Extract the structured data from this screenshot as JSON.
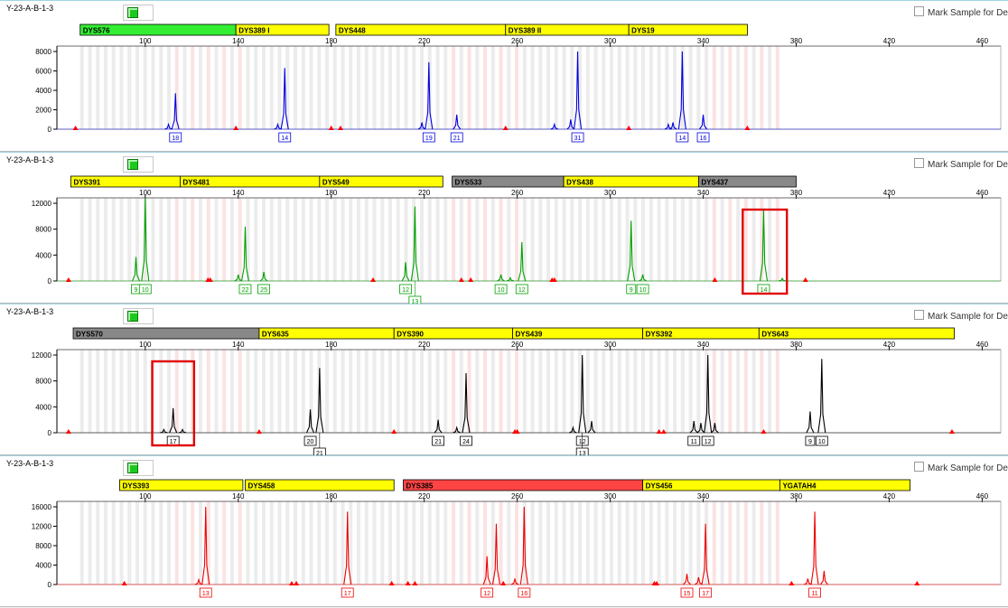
{
  "colors": {
    "accent_box": "#e00000",
    "bin_yellow": "#ffff00",
    "bin_gray": "#888888",
    "bin_green": "#33ee33",
    "bin_red": "#ff4444"
  },
  "panels": [
    {
      "sample": "Y-23-A-B-1-3",
      "mark_label": "Mark Sample for Deleti",
      "dye_color": "#0000dd",
      "ymax": 8000,
      "yticks": [
        0,
        2000,
        4000,
        6000,
        8000
      ],
      "bins": [
        {
          "name": "DYS576",
          "start": 72,
          "end": 139,
          "color": "#33ee33"
        },
        {
          "name": "DYS389 I",
          "start": 139,
          "end": 179,
          "color": "#ffff00"
        },
        {
          "name": "DYS448",
          "start": 182,
          "end": 255,
          "color": "#ffff00"
        },
        {
          "name": "DYS389 II",
          "start": 255,
          "end": 308,
          "color": "#ffff00"
        },
        {
          "name": "DYS19",
          "start": 308,
          "end": 359,
          "color": "#ffff00"
        }
      ],
      "peaks": [
        {
          "x": 113,
          "h": 3700
        },
        {
          "x": 110,
          "h": 500
        },
        {
          "x": 160,
          "h": 6300
        },
        {
          "x": 157,
          "h": 500
        },
        {
          "x": 222,
          "h": 6900
        },
        {
          "x": 219,
          "h": 700
        },
        {
          "x": 234,
          "h": 1500
        },
        {
          "x": 286,
          "h": 8000
        },
        {
          "x": 283,
          "h": 1000
        },
        {
          "x": 276,
          "h": 500
        },
        {
          "x": 331,
          "h": 8000
        },
        {
          "x": 327,
          "h": 700
        },
        {
          "x": 325,
          "h": 500
        },
        {
          "x": 340,
          "h": 1500
        }
      ],
      "alleles": [
        {
          "x": 113,
          "label": "18",
          "row": 0
        },
        {
          "x": 160,
          "label": "14",
          "row": 0
        },
        {
          "x": 222,
          "label": "19",
          "row": 0
        },
        {
          "x": 234,
          "label": "21",
          "row": 0
        },
        {
          "x": 286,
          "label": "31",
          "row": 0
        },
        {
          "x": 331,
          "label": "14",
          "row": 0
        },
        {
          "x": 340,
          "label": "16",
          "row": 0
        }
      ],
      "markers": [
        70,
        139,
        180,
        184,
        255,
        308,
        359
      ],
      "highlight": null
    },
    {
      "sample": "Y-23-A-B-1-3",
      "mark_label": "Mark Sample for Deleti",
      "dye_color": "#00a000",
      "ymax": 12000,
      "yticks": [
        0,
        4000,
        8000,
        12000
      ],
      "bins": [
        {
          "name": "DYS391",
          "start": 68,
          "end": 115,
          "color": "#ffff00"
        },
        {
          "name": "DYS481",
          "start": 115,
          "end": 175,
          "color": "#ffff00"
        },
        {
          "name": "DYS549",
          "start": 175,
          "end": 228,
          "color": "#ffff00"
        },
        {
          "name": "DYS533",
          "start": 232,
          "end": 280,
          "color": "#888888"
        },
        {
          "name": "DYS438",
          "start": 280,
          "end": 338,
          "color": "#ffff00"
        },
        {
          "name": "DYS437",
          "start": 338,
          "end": 380,
          "color": "#888888"
        }
      ],
      "peaks": [
        {
          "x": 96,
          "h": 3700
        },
        {
          "x": 100,
          "h": 13600
        },
        {
          "x": 143,
          "h": 8400
        },
        {
          "x": 140,
          "h": 1000
        },
        {
          "x": 151,
          "h": 1400
        },
        {
          "x": 212,
          "h": 2900
        },
        {
          "x": 216,
          "h": 11500
        },
        {
          "x": 253,
          "h": 1000
        },
        {
          "x": 257,
          "h": 500
        },
        {
          "x": 262,
          "h": 6000
        },
        {
          "x": 309,
          "h": 9300
        },
        {
          "x": 314,
          "h": 1000
        },
        {
          "x": 366,
          "h": 11000
        },
        {
          "x": 374,
          "h": 400
        }
      ],
      "alleles": [
        {
          "x": 96,
          "label": "9",
          "row": 0
        },
        {
          "x": 100,
          "label": "10",
          "row": 0
        },
        {
          "x": 143,
          "label": "22",
          "row": 0
        },
        {
          "x": 151,
          "label": "25",
          "row": 0
        },
        {
          "x": 212,
          "label": "12",
          "row": 0
        },
        {
          "x": 216,
          "label": "13",
          "row": 1
        },
        {
          "x": 253,
          "label": "10",
          "row": 0
        },
        {
          "x": 262,
          "label": "12",
          "row": 0
        },
        {
          "x": 309,
          "label": "9",
          "row": 0
        },
        {
          "x": 314,
          "label": "10",
          "row": 0
        },
        {
          "x": 366,
          "label": "14",
          "row": 0
        }
      ],
      "markers": [
        67,
        127,
        128,
        198,
        236,
        240,
        275,
        276,
        345,
        384
      ],
      "highlight": {
        "x0": 357,
        "x1": 376
      }
    },
    {
      "sample": "Y-23-A-B-1-3",
      "mark_label": "Mark Sample for Deleti",
      "dye_color": "#000000",
      "ymax": 12000,
      "yticks": [
        0,
        4000,
        8000,
        12000
      ],
      "bins": [
        {
          "name": "DYS570",
          "start": 69,
          "end": 149,
          "color": "#888888"
        },
        {
          "name": "DYS635",
          "start": 149,
          "end": 207,
          "color": "#ffff00"
        },
        {
          "name": "DYS390",
          "start": 207,
          "end": 258,
          "color": "#ffff00"
        },
        {
          "name": "DYS439",
          "start": 258,
          "end": 314,
          "color": "#ffff00"
        },
        {
          "name": "DYS392",
          "start": 314,
          "end": 364,
          "color": "#ffff00"
        },
        {
          "name": "DYS643",
          "start": 364,
          "end": 448,
          "color": "#ffff00"
        }
      ],
      "peaks": [
        {
          "x": 112,
          "h": 3800
        },
        {
          "x": 108,
          "h": 500
        },
        {
          "x": 116,
          "h": 500
        },
        {
          "x": 171,
          "h": 3600
        },
        {
          "x": 175,
          "h": 10000
        },
        {
          "x": 226,
          "h": 2000
        },
        {
          "x": 238,
          "h": 9200
        },
        {
          "x": 234,
          "h": 800
        },
        {
          "x": 288,
          "h": 12000
        },
        {
          "x": 292,
          "h": 1800
        },
        {
          "x": 284,
          "h": 800
        },
        {
          "x": 336,
          "h": 1800
        },
        {
          "x": 339,
          "h": 1500
        },
        {
          "x": 342,
          "h": 12000
        },
        {
          "x": 345,
          "h": 1500
        },
        {
          "x": 386,
          "h": 3300
        },
        {
          "x": 391,
          "h": 11400
        }
      ],
      "alleles": [
        {
          "x": 112,
          "label": "17",
          "row": 0
        },
        {
          "x": 171,
          "label": "20",
          "row": 0
        },
        {
          "x": 175,
          "label": "21",
          "row": 1
        },
        {
          "x": 226,
          "label": "21",
          "row": 0
        },
        {
          "x": 238,
          "label": "24",
          "row": 0
        },
        {
          "x": 288,
          "label": "12",
          "row": 0
        },
        {
          "x": 288,
          "label": "13",
          "row": 1
        },
        {
          "x": 336,
          "label": "11",
          "row": 0
        },
        {
          "x": 342,
          "label": "12",
          "row": 0
        },
        {
          "x": 386,
          "label": "9",
          "row": 0
        },
        {
          "x": 391,
          "label": "10",
          "row": 0
        }
      ],
      "markers": [
        67,
        149,
        207,
        259,
        260,
        321,
        323,
        366,
        447
      ],
      "highlight": {
        "x0": 103,
        "x1": 121
      }
    },
    {
      "sample": "Y-23-A-B-1-3",
      "mark_label": "Mark Sample for Deleti",
      "dye_color": "#ee0000",
      "ymax": 16000,
      "yticks": [
        0,
        4000,
        8000,
        12000,
        16000
      ],
      "bins": [
        {
          "name": "DYS393",
          "start": 89,
          "end": 142,
          "color": "#ffff00"
        },
        {
          "name": "DYS458",
          "start": 143,
          "end": 207,
          "color": "#ffff00"
        },
        {
          "name": "DYS385",
          "start": 211,
          "end": 314,
          "color": "#ff4444"
        },
        {
          "name": "DYS456",
          "start": 314,
          "end": 373,
          "color": "#ffff00"
        },
        {
          "name": "YGATAH4",
          "start": 373,
          "end": 429,
          "color": "#ffff00"
        }
      ],
      "peaks": [
        {
          "x": 126,
          "h": 16000
        },
        {
          "x": 123,
          "h": 1000
        },
        {
          "x": 187,
          "h": 15000
        },
        {
          "x": 247,
          "h": 5800
        },
        {
          "x": 251,
          "h": 12500
        },
        {
          "x": 263,
          "h": 16000
        },
        {
          "x": 259,
          "h": 1200
        },
        {
          "x": 333,
          "h": 2200
        },
        {
          "x": 338,
          "h": 1500
        },
        {
          "x": 341,
          "h": 12500
        },
        {
          "x": 385,
          "h": 1200
        },
        {
          "x": 388,
          "h": 15000
        },
        {
          "x": 392,
          "h": 2800
        }
      ],
      "alleles": [
        {
          "x": 126,
          "label": "13",
          "row": 0
        },
        {
          "x": 187,
          "label": "17",
          "row": 0
        },
        {
          "x": 247,
          "label": "12",
          "row": 0
        },
        {
          "x": 263,
          "label": "16",
          "row": 0
        },
        {
          "x": 333,
          "label": "15",
          "row": 0
        },
        {
          "x": 341,
          "label": "17",
          "row": 0
        },
        {
          "x": 388,
          "label": "11",
          "row": 0
        }
      ],
      "markers": [
        91,
        163,
        165,
        206,
        213,
        216,
        254,
        319,
        320,
        378,
        432
      ],
      "highlight": null
    }
  ],
  "chart_data": {
    "type": "line",
    "x": {
      "ticks": [
        100,
        140,
        180,
        220,
        260,
        300,
        340,
        380,
        420,
        460
      ],
      "range": [
        62,
        468
      ],
      "unit": "bp"
    },
    "series": [
      {
        "name": "",
        "loci": [
          "DYS576",
          "DYS389 I",
          "DYS448",
          "DYS389 II",
          "DYS19"
        ],
        "alleles": [
          "18",
          "14",
          "19",
          "21",
          "31",
          "14",
          "16"
        ]
      },
      {
        "name": "",
        "loci": [
          "DYS391",
          "DYS481",
          "DYS549",
          "DYS533",
          "DYS438",
          "DYS437"
        ],
        "alleles": [
          "9",
          "10",
          "22",
          "25",
          "12",
          "13",
          "10",
          "12",
          "9",
          "10",
          "14"
        ]
      },
      {
        "name": "",
        "loci": [
          "DYS570",
          "DYS635",
          "DYS390",
          "DYS439",
          "DYS392",
          "DYS643"
        ],
        "alleles": [
          "17",
          "20",
          "21",
          "21",
          "24",
          "12",
          "13",
          "11",
          "12",
          "9",
          "10"
        ]
      },
      {
        "name": "",
        "loci": [
          "DYS393",
          "DYS458",
          "DYS385",
          "DYS456",
          "YGATAH4"
        ],
        "alleles": [
          "13",
          "17",
          "12",
          "16",
          "15",
          "17",
          "11"
        ]
      }
    ]
  }
}
